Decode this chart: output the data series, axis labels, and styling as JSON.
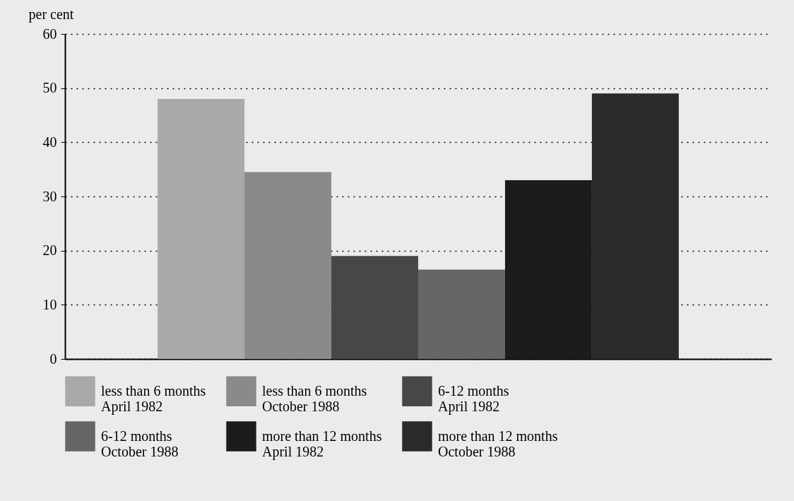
{
  "chart_data": {
    "type": "bar",
    "ylabel": "per cent",
    "categories": [
      null
    ],
    "series": [
      {
        "name": "less than 6 months\nApril 1982",
        "color": "#a9a9a9",
        "values": [
          48
        ]
      },
      {
        "name": "less than 6 months\nOctober 1988",
        "color": "#8a8a8a",
        "values": [
          34.5
        ]
      },
      {
        "name": "6-12 months\nApril 1982",
        "color": "#474747",
        "values": [
          19
        ]
      },
      {
        "name": "6-12 months\nOctober 1988",
        "color": "#666666",
        "values": [
          16.5
        ]
      },
      {
        "name": "more than 12 months\nApril 1982",
        "color": "#1c1c1c",
        "values": [
          33
        ]
      },
      {
        "name": "more than 12 months\nOctober 1988",
        "color": "#2a2a2a",
        "values": [
          49
        ]
      }
    ],
    "ylim": [
      0,
      60
    ],
    "yticks": [
      0,
      10,
      20,
      30,
      40,
      50,
      60
    ],
    "grid": "y",
    "legend": "bottom"
  }
}
